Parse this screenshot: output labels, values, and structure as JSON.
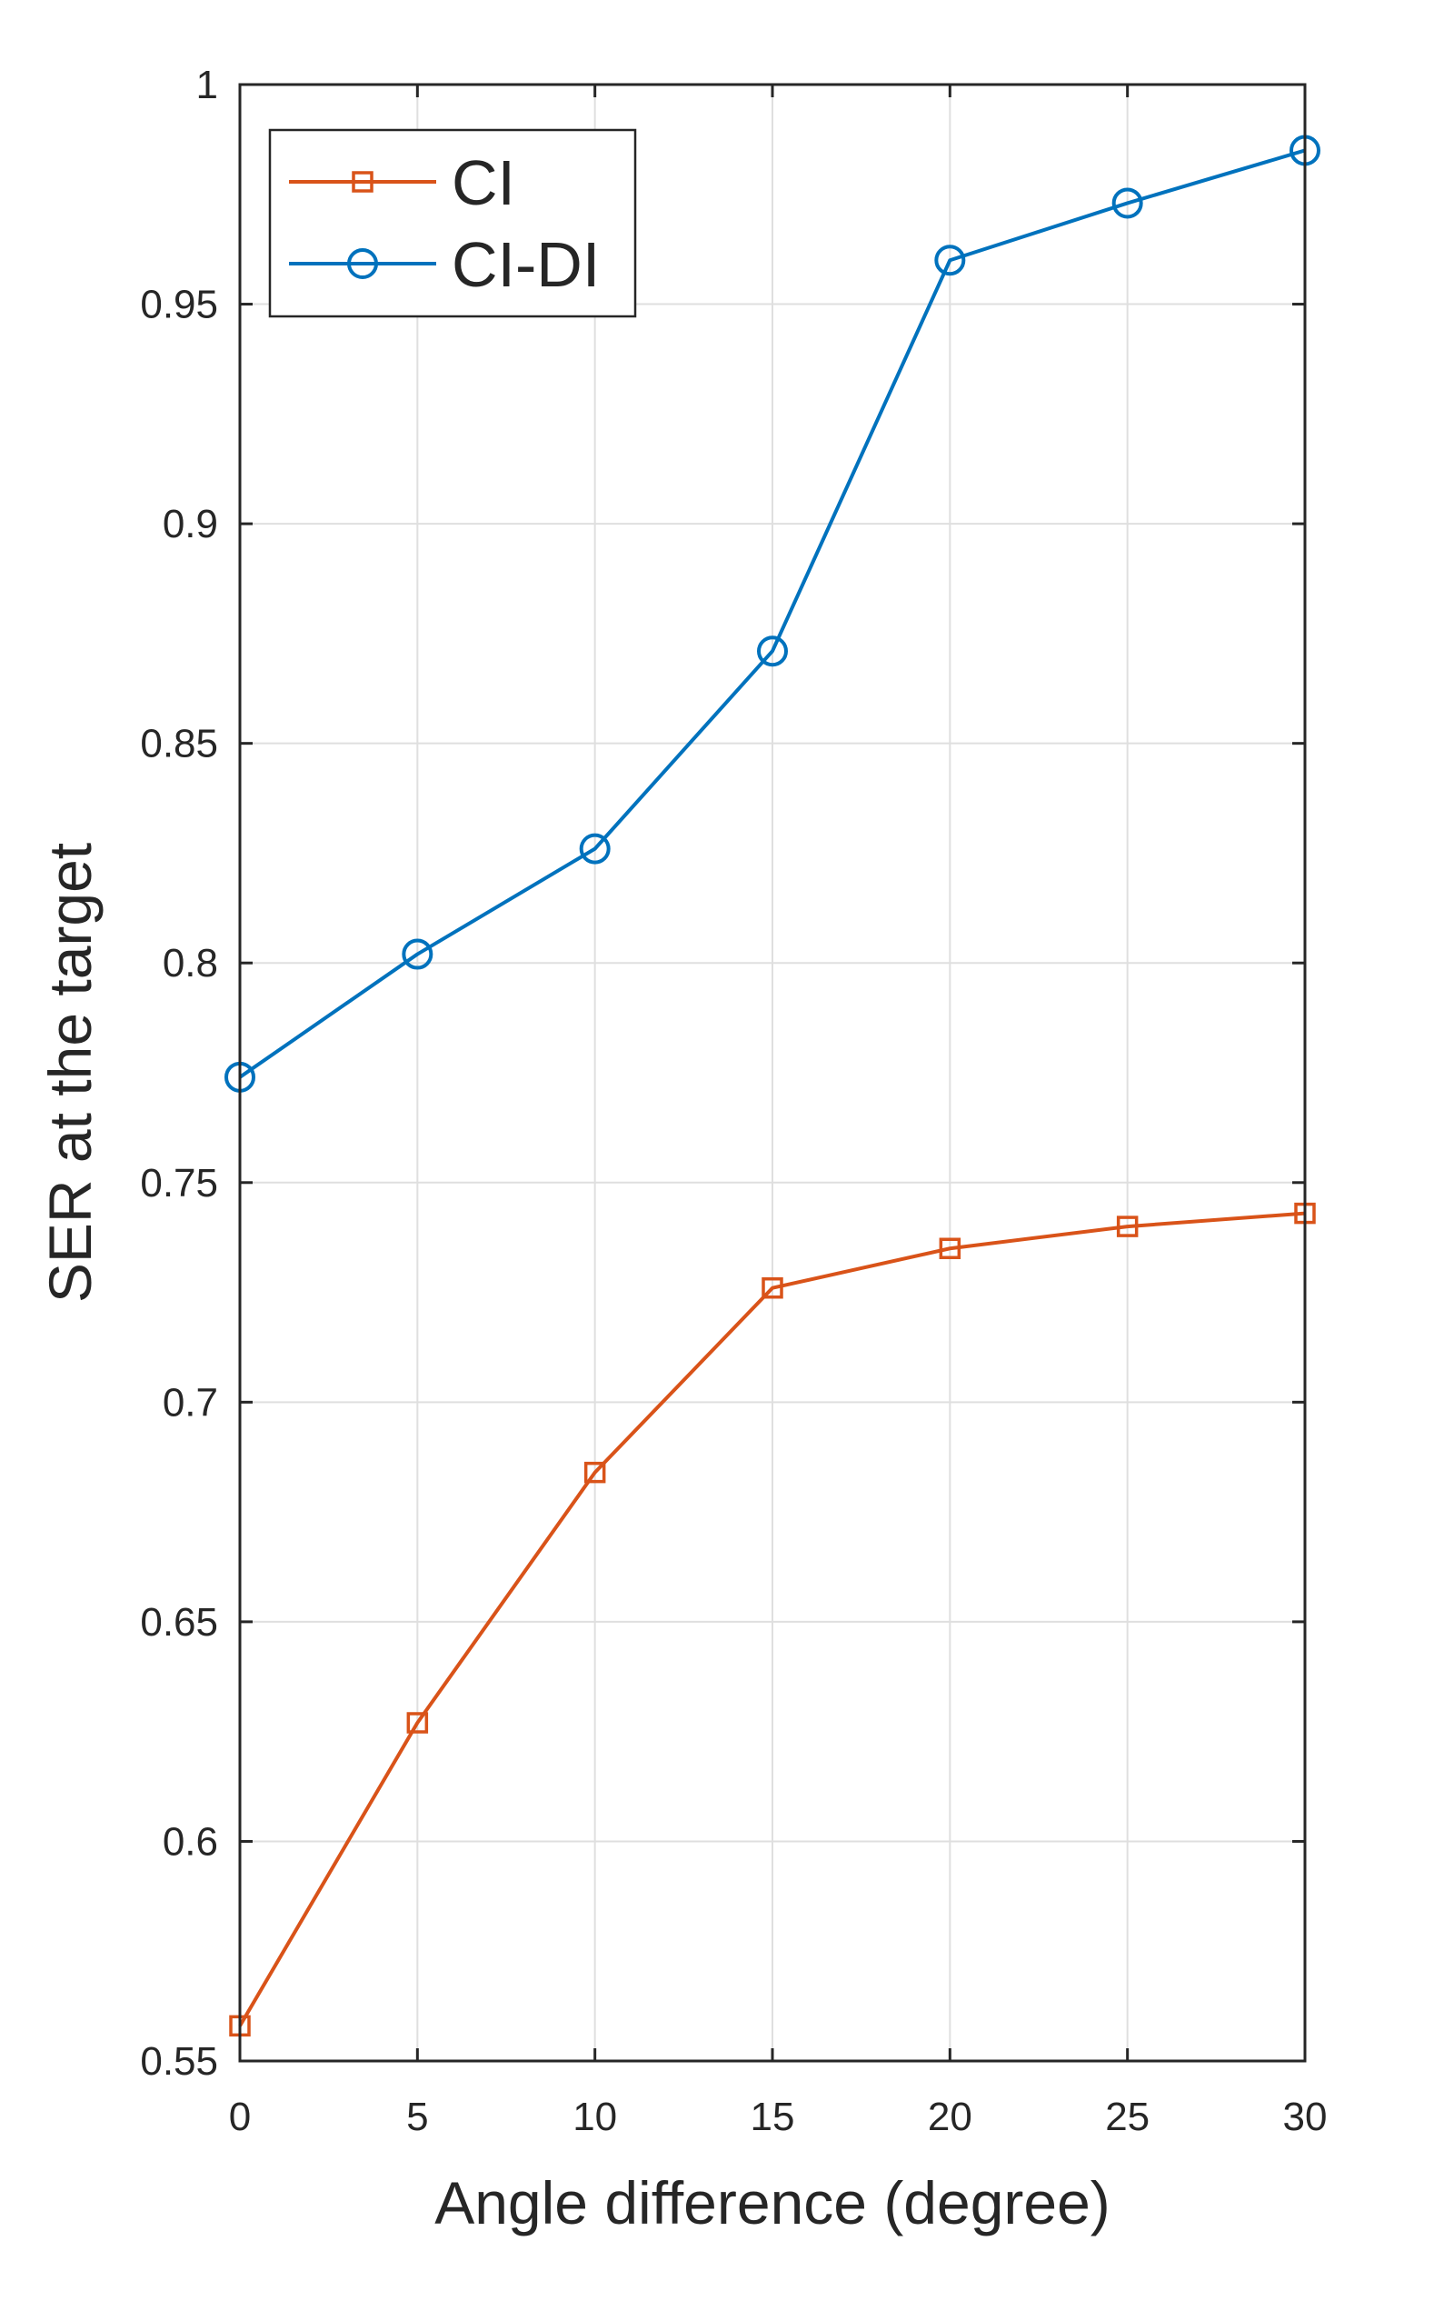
{
  "chart_data": {
    "type": "line",
    "xlabel": "Angle difference (degree)",
    "ylabel": "SER at the target",
    "xlim": [
      0,
      30
    ],
    "ylim": [
      0.55,
      1
    ],
    "xticks": [
      0,
      5,
      10,
      15,
      20,
      25,
      30
    ],
    "yticks": [
      0.55,
      0.6,
      0.65,
      0.7,
      0.75,
      0.8,
      0.85,
      0.9,
      0.95,
      1
    ],
    "xtick_labels": [
      "0",
      "5",
      "10",
      "15",
      "20",
      "25",
      "30"
    ],
    "ytick_labels": [
      "0.55",
      "0.6",
      "0.65",
      "0.7",
      "0.75",
      "0.8",
      "0.85",
      "0.9",
      "0.95",
      "1"
    ],
    "grid": true,
    "legend_position": "top-left",
    "x": [
      0,
      5,
      10,
      15,
      20,
      25,
      30
    ],
    "series": [
      {
        "name": "CI",
        "marker": "square",
        "color": "#D95319",
        "values": [
          0.558,
          0.627,
          0.684,
          0.726,
          0.735,
          0.74,
          0.743
        ]
      },
      {
        "name": "CI-DI",
        "marker": "circle",
        "color": "#0072BD",
        "values": [
          0.774,
          0.802,
          0.826,
          0.871,
          0.96,
          0.973,
          0.985
        ]
      }
    ]
  }
}
